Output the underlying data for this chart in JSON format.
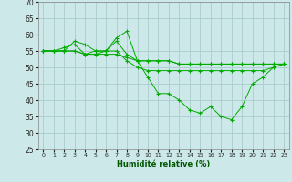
{
  "xlabel": "Humidité relative (%)",
  "ylabel": "",
  "xlim": [
    -0.5,
    23.5
  ],
  "ylim": [
    25,
    70
  ],
  "yticks": [
    25,
    30,
    35,
    40,
    45,
    50,
    55,
    60,
    65,
    70
  ],
  "xticks": [
    0,
    1,
    2,
    3,
    4,
    5,
    6,
    7,
    8,
    9,
    10,
    11,
    12,
    13,
    14,
    15,
    16,
    17,
    18,
    19,
    20,
    21,
    22,
    23
  ],
  "background_color": "#cce8e8",
  "grid_color": "#aacccc",
  "line_color": "#00aa00",
  "series": [
    [
      55,
      55,
      55,
      55,
      54,
      54,
      54,
      54,
      53,
      52,
      52,
      52,
      52,
      51,
      51,
      51,
      51,
      51,
      51,
      51,
      51,
      51,
      51,
      51
    ],
    [
      55,
      55,
      55,
      58,
      57,
      55,
      55,
      59,
      61,
      52,
      47,
      42,
      42,
      40,
      37,
      36,
      38,
      35,
      34,
      38,
      45,
      47,
      50,
      51
    ],
    [
      55,
      55,
      56,
      57,
      54,
      55,
      55,
      58,
      54,
      52,
      52,
      52,
      52,
      51,
      51,
      51,
      51,
      51,
      51,
      51,
      51,
      51,
      51,
      51
    ],
    [
      55,
      55,
      55,
      55,
      54,
      54,
      55,
      55,
      52,
      50,
      49,
      49,
      49,
      49,
      49,
      49,
      49,
      49,
      49,
      49,
      49,
      49,
      50,
      51
    ]
  ]
}
